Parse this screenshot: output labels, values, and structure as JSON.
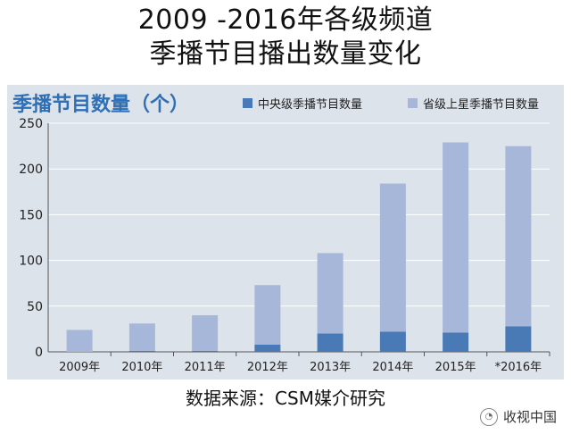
{
  "title_line1": "2009 -2016年各级频道",
  "title_line2": "季播节目播出数量变化",
  "panel_title": "季播节目数量（个）",
  "source": "数据来源：CSM媒介研究",
  "watermark": "收视中国",
  "colors": {
    "central": "#4a7ab5",
    "provincial": "#a6b7d9",
    "panel_bg": "#dde3ea",
    "title_blue": "#2e6fb5"
  },
  "chart_data": {
    "type": "bar",
    "stacked": true,
    "title": "季播节目数量（个）",
    "categories": [
      "2009年",
      "2010年",
      "2011年",
      "2012年",
      "2013年",
      "2014年",
      "2015年",
      "*2016年"
    ],
    "series": [
      {
        "name": "中央级季播节目数量",
        "values": [
          0,
          1,
          1,
          8,
          20,
          22,
          21,
          28
        ]
      },
      {
        "name": "省级上星季播节目数量",
        "values": [
          24,
          30,
          39,
          65,
          88,
          162,
          208,
          197
        ]
      }
    ],
    "ylim": [
      0,
      250
    ],
    "yticks": [
      0,
      50,
      100,
      150,
      200,
      250
    ],
    "grid": true,
    "legend_position": "top-right"
  }
}
